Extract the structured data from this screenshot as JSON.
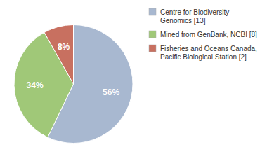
{
  "chart_data": {
    "type": "pie",
    "categories": [
      "Centre for Biodiversity\nGenomics [13]",
      "Mined from GenBank, NCBI [8]",
      "Fisheries and Oceans Canada,\nPacific Biological Station [2]"
    ],
    "values": [
      56,
      34,
      8
    ],
    "value_labels": [
      "56%",
      "34%",
      "8%"
    ],
    "colors": [
      "#a8b8d0",
      "#a0c878",
      "#c87060"
    ],
    "data_labels": true,
    "legend": "right"
  }
}
